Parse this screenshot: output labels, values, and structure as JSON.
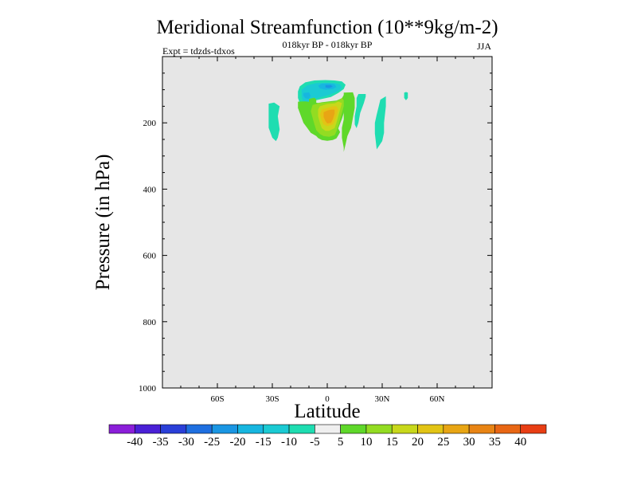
{
  "chart_data": {
    "type": "contour",
    "title": "Meridional Streamfunction (10**9kg/m-2)",
    "subtitle_left": "Expt = tdzds-tdxos",
    "subtitle_center": "018kyr BP - 018kyr BP",
    "subtitle_right": "JJA",
    "xlabel": "Latitude",
    "ylabel": "Pressure (in hPa)",
    "xlim": [
      -90,
      90
    ],
    "ylim": [
      0,
      1000
    ],
    "y_inverted": true,
    "x_ticks": [
      {
        "value": -60,
        "label": "60S"
      },
      {
        "value": -30,
        "label": "30S"
      },
      {
        "value": 0,
        "label": "0"
      },
      {
        "value": 30,
        "label": "30N"
      },
      {
        "value": 60,
        "label": "60N"
      }
    ],
    "y_ticks": [
      {
        "value": 200,
        "label": "200"
      },
      {
        "value": 400,
        "label": "400"
      },
      {
        "value": 600,
        "label": "600"
      },
      {
        "value": 800,
        "label": "800"
      },
      {
        "value": 1000,
        "label": "1000"
      }
    ],
    "plot_background": "#e6e6e6",
    "colorbar": {
      "colors": [
        "#8b1fd9",
        "#4a20d6",
        "#2a3fd8",
        "#1f6fe0",
        "#1a96e3",
        "#17b6e0",
        "#1bcad3",
        "#1fddb1",
        "#efefef",
        "#5fd82a",
        "#93dc22",
        "#c8d81b",
        "#e2c415",
        "#e8a514",
        "#e88414",
        "#e86614",
        "#e83e14"
      ],
      "labels": [
        "-40",
        "-35",
        "-30",
        "-25",
        "-20",
        "-15",
        "-10",
        "-5",
        "5",
        "10",
        "15",
        "20",
        "25",
        "30",
        "35",
        "40"
      ]
    },
    "regions": [
      {
        "level": -5,
        "polygon": [
          [
            -12,
            78
          ],
          [
            -7,
            72
          ],
          [
            -1,
            71
          ],
          [
            4,
            72
          ],
          [
            8,
            75
          ],
          [
            10,
            85
          ],
          [
            9,
            98
          ],
          [
            6,
            110
          ],
          [
            2,
            122
          ],
          [
            -4,
            129
          ],
          [
            -9,
            135
          ],
          [
            -11,
            148
          ],
          [
            -12,
            160
          ],
          [
            -15,
            165
          ],
          [
            -16,
            155
          ],
          [
            -15,
            140
          ],
          [
            -16,
            125
          ],
          [
            -16,
            105
          ],
          [
            -15,
            90
          ]
        ]
      },
      {
        "level": -10,
        "polygon": [
          [
            -11,
            87
          ],
          [
            -6,
            80
          ],
          [
            0,
            79
          ],
          [
            4,
            80
          ],
          [
            7,
            84
          ],
          [
            8,
            94
          ],
          [
            6,
            104
          ],
          [
            2,
            114
          ],
          [
            -3,
            122
          ],
          [
            -6,
            126
          ],
          [
            -8,
            132
          ],
          [
            -9,
            142
          ],
          [
            -11,
            146
          ],
          [
            -13,
            138
          ],
          [
            -14,
            120
          ],
          [
            -14,
            100
          ]
        ]
      },
      {
        "level": -15,
        "polygon": [
          [
            -3,
            82
          ],
          [
            1,
            81
          ],
          [
            4,
            84
          ],
          [
            5,
            92
          ],
          [
            3,
            98
          ],
          [
            -1,
            100
          ],
          [
            -4,
            96
          ],
          [
            -5,
            88
          ]
        ]
      },
      {
        "level": -15,
        "polygon": [
          [
            -13,
            110
          ],
          [
            -10,
            108
          ],
          [
            -9,
            118
          ],
          [
            -10,
            128
          ],
          [
            -12,
            126
          ],
          [
            -13,
            118
          ]
        ]
      },
      {
        "level": -20,
        "polygon": [
          [
            -1,
            86
          ],
          [
            2,
            86
          ],
          [
            3,
            91
          ],
          [
            1,
            95
          ],
          [
            -1,
            93
          ]
        ]
      },
      {
        "level": -5,
        "polygon": [
          [
            -32,
            142
          ],
          [
            -29,
            139
          ],
          [
            -26,
            150
          ],
          [
            -27,
            180
          ],
          [
            -26,
            220
          ],
          [
            -27,
            245
          ],
          [
            -28,
            255
          ],
          [
            -30,
            245
          ],
          [
            -32,
            215
          ],
          [
            -32,
            180
          ]
        ]
      },
      {
        "level": -5,
        "polygon": [
          [
            17,
            113
          ],
          [
            21,
            113
          ],
          [
            21,
            121
          ],
          [
            20,
            140
          ],
          [
            18,
            170
          ],
          [
            17,
            200
          ],
          [
            16,
            216
          ],
          [
            15,
            205
          ],
          [
            15,
            180
          ],
          [
            16,
            150
          ],
          [
            16,
            125
          ]
        ]
      },
      {
        "level": -5,
        "polygon": [
          [
            29,
            130
          ],
          [
            32,
            120
          ],
          [
            32,
            150
          ],
          [
            31,
            200
          ],
          [
            31,
            230
          ],
          [
            30,
            255
          ],
          [
            27,
            280
          ],
          [
            26,
            232
          ],
          [
            26,
            200
          ],
          [
            27,
            175
          ]
        ]
      },
      {
        "level": -5,
        "polygon": [
          [
            43,
            107
          ],
          [
            44,
            109
          ],
          [
            44,
            125
          ],
          [
            43,
            132
          ],
          [
            42,
            125
          ],
          [
            42,
            109
          ]
        ]
      },
      {
        "level": 5,
        "polygon": [
          [
            9,
            109
          ],
          [
            14,
            108
          ],
          [
            15,
            125
          ],
          [
            15,
            155
          ],
          [
            14,
            185
          ],
          [
            13,
            215
          ],
          [
            11,
            240
          ],
          [
            10,
            265
          ],
          [
            9,
            288
          ],
          [
            9,
            275
          ],
          [
            8,
            245
          ],
          [
            8,
            215
          ],
          [
            9,
            190
          ],
          [
            9,
            165
          ],
          [
            9,
            140
          ],
          [
            9,
            120
          ]
        ]
      },
      {
        "level": 5,
        "polygon": [
          [
            -10,
            128
          ],
          [
            -7,
            124
          ],
          [
            -6,
            130
          ],
          [
            -6,
            140
          ],
          [
            -8,
            146
          ],
          [
            -10,
            140
          ]
        ]
      },
      {
        "level": 5,
        "polygon": [
          [
            -16,
            136
          ],
          [
            -12,
            135
          ],
          [
            -8,
            138
          ],
          [
            -5,
            140
          ],
          [
            -3,
            138
          ],
          [
            1,
            135
          ],
          [
            5,
            133
          ],
          [
            8,
            126
          ],
          [
            9,
            116
          ],
          [
            11,
            113
          ],
          [
            11,
            123
          ],
          [
            10,
            135
          ],
          [
            10,
            150
          ],
          [
            9,
            170
          ],
          [
            8,
            188
          ],
          [
            7,
            202
          ],
          [
            6,
            217
          ],
          [
            7,
            228
          ],
          [
            6,
            238
          ],
          [
            5,
            247
          ],
          [
            3,
            252
          ],
          [
            0,
            254
          ],
          [
            -3,
            252
          ],
          [
            -5,
            246
          ],
          [
            -6,
            240
          ],
          [
            -9,
            230
          ],
          [
            -11,
            215
          ],
          [
            -13,
            200
          ],
          [
            -14,
            185
          ],
          [
            -15,
            170
          ],
          [
            -16,
            155
          ]
        ]
      },
      {
        "level": 10,
        "polygon": [
          [
            -8,
            146
          ],
          [
            -4,
            140
          ],
          [
            0,
            138
          ],
          [
            4,
            136
          ],
          [
            7,
            130
          ],
          [
            8,
            124
          ],
          [
            9,
            132
          ],
          [
            9,
            150
          ],
          [
            8,
            170
          ],
          [
            7,
            190
          ],
          [
            6,
            210
          ],
          [
            5,
            226
          ],
          [
            4,
            237
          ],
          [
            1,
            242
          ],
          [
            -2,
            240
          ],
          [
            -4,
            234
          ],
          [
            -6,
            222
          ],
          [
            -7,
            205
          ],
          [
            -8,
            185
          ],
          [
            -9,
            165
          ]
        ]
      },
      {
        "level": 15,
        "polygon": [
          [
            -4,
            150
          ],
          [
            0,
            143
          ],
          [
            4,
            141
          ],
          [
            6,
            136
          ],
          [
            8,
            140
          ],
          [
            7,
            160
          ],
          [
            6,
            180
          ],
          [
            5,
            200
          ],
          [
            4,
            216
          ],
          [
            1,
            224
          ],
          [
            -1,
            224
          ],
          [
            -3,
            216
          ],
          [
            -4,
            200
          ],
          [
            -5,
            180
          ],
          [
            -5,
            160
          ]
        ]
      },
      {
        "level": 20,
        "polygon": [
          [
            -3,
            160
          ],
          [
            0,
            155
          ],
          [
            3,
            150
          ],
          [
            5,
            150
          ],
          [
            6,
            160
          ],
          [
            5,
            180
          ],
          [
            4,
            195
          ],
          [
            3,
            205
          ],
          [
            0,
            210
          ],
          [
            -2,
            205
          ],
          [
            -3,
            192
          ],
          [
            -4,
            175
          ]
        ]
      },
      {
        "level": 25,
        "polygon": [
          [
            -2,
            168
          ],
          [
            0,
            163
          ],
          [
            2,
            160
          ],
          [
            4,
            160
          ],
          [
            4,
            172
          ],
          [
            3,
            190
          ],
          [
            2,
            200
          ],
          [
            0,
            202
          ],
          [
            -1,
            195
          ],
          [
            -2,
            182
          ]
        ]
      }
    ]
  }
}
